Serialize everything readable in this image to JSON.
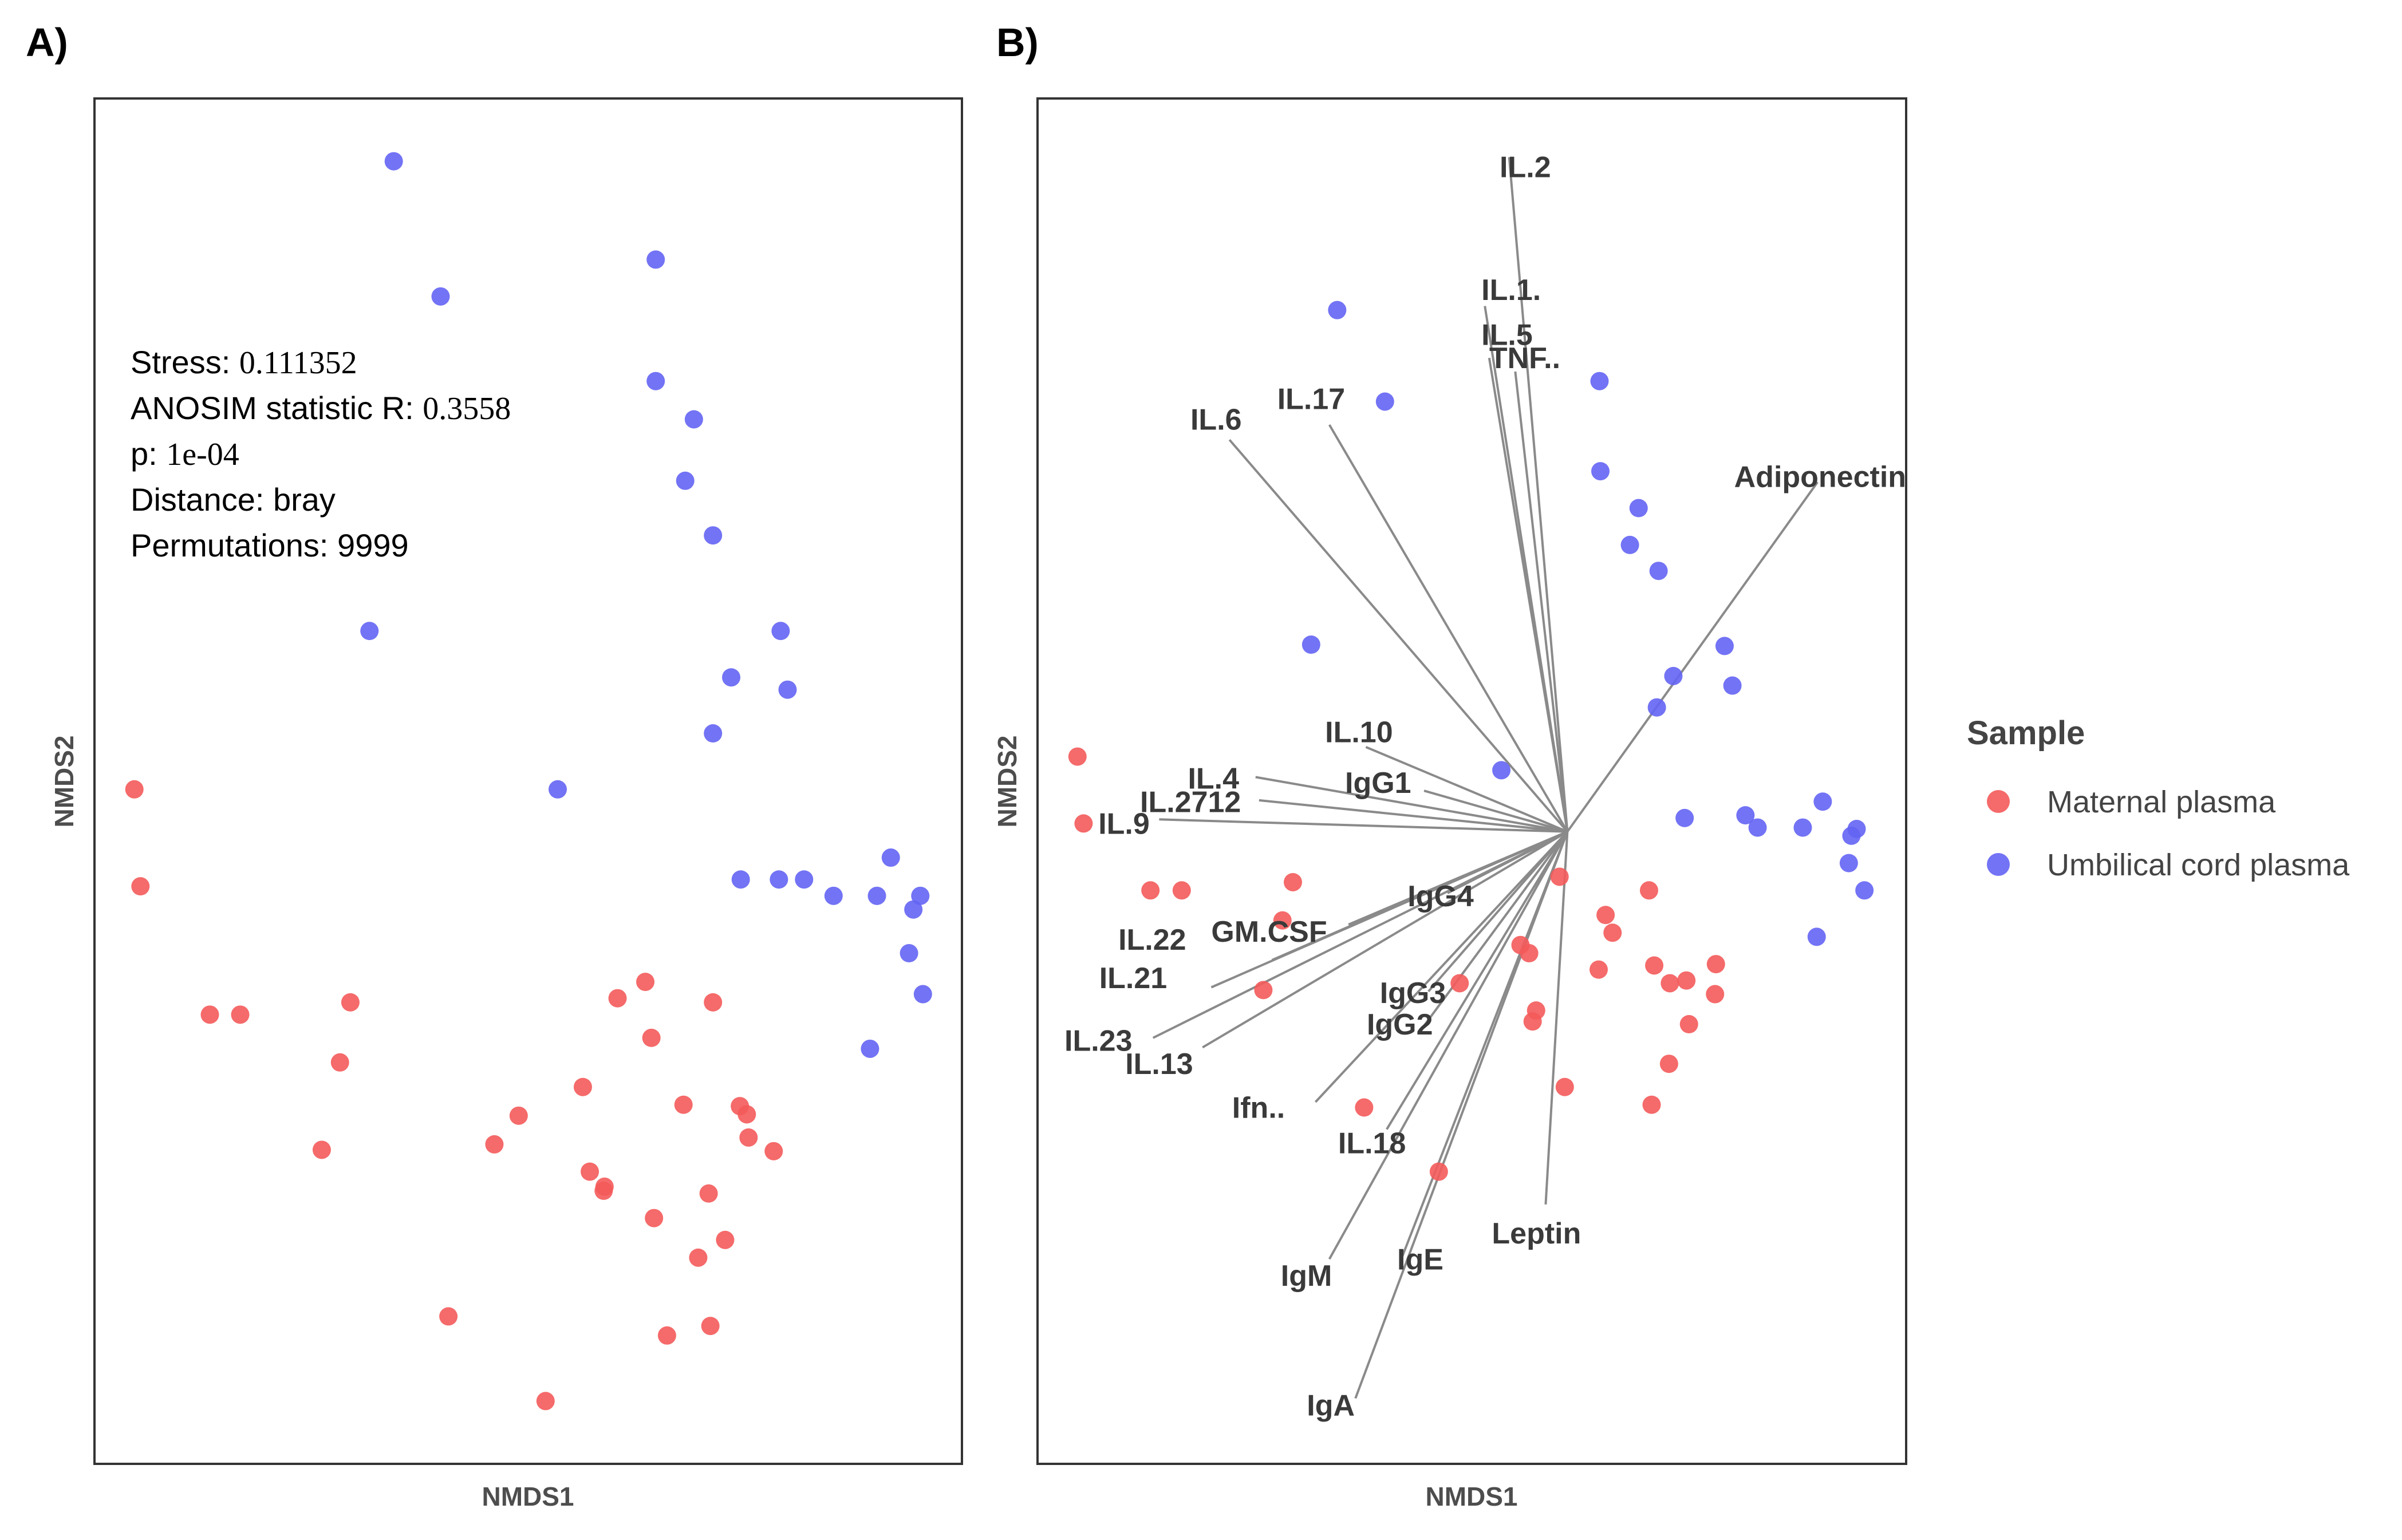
{
  "chart_data": [
    {
      "type": "scatter",
      "panel_label": "A)",
      "xlabel": "NMDS1",
      "ylabel": "NMDS2",
      "xlim": [
        0,
        100
      ],
      "ylim": [
        0,
        100
      ],
      "stats": [
        {
          "key": "Stress: ",
          "value": "0.111352"
        },
        {
          "key": "ANOSIM statistic R: ",
          "value": "0.3558"
        },
        {
          "key": "p: ",
          "value": "1e-04"
        },
        {
          "key": "Distance: bray",
          "value": ""
        },
        {
          "key": "Permutations: 9999",
          "value": ""
        }
      ],
      "series": [
        {
          "name": "Maternal plasma",
          "color": "#f45a5a",
          "points": [
            [
              4.6,
              49.4
            ],
            [
              5.3,
              42.3
            ],
            [
              13.3,
              32.9
            ],
            [
              16.8,
              32.9
            ],
            [
              29.5,
              33.8
            ],
            [
              28.3,
              29.4
            ],
            [
              26.2,
              23.0
            ],
            [
              46.1,
              23.4
            ],
            [
              40.8,
              10.8
            ],
            [
              48.9,
              25.5
            ],
            [
              56.3,
              27.6
            ],
            [
              57.1,
              21.4
            ],
            [
              58.7,
              20.0
            ],
            [
              63.5,
              35.3
            ],
            [
              64.5,
              18.0
            ],
            [
              66.0,
              9.4
            ],
            [
              69.6,
              15.1
            ],
            [
              64.2,
              31.2
            ],
            [
              67.9,
              26.3
            ],
            [
              71.3,
              33.8
            ],
            [
              70.8,
              19.8
            ],
            [
              75.2,
              25.6
            ],
            [
              75.4,
              23.9
            ],
            [
              78.3,
              22.9
            ],
            [
              72.7,
              16.4
            ],
            [
              74.4,
              26.2
            ],
            [
              60.3,
              34.1
            ],
            [
              58.8,
              20.3
            ],
            [
              71.0,
              10.1
            ],
            [
              52.0,
              4.6
            ]
          ]
        },
        {
          "name": "Umbilical cord plasma",
          "color": "#6464f4",
          "points": [
            [
              34.5,
              95.4
            ],
            [
              39.9,
              85.5
            ],
            [
              64.7,
              88.2
            ],
            [
              64.7,
              79.3
            ],
            [
              69.1,
              76.5
            ],
            [
              68.1,
              72.0
            ],
            [
              71.3,
              68.0
            ],
            [
              31.7,
              61.0
            ],
            [
              79.1,
              61.0
            ],
            [
              73.4,
              57.6
            ],
            [
              79.9,
              56.7
            ],
            [
              71.3,
              53.5
            ],
            [
              53.4,
              49.4
            ],
            [
              74.5,
              42.8
            ],
            [
              81.8,
              42.8
            ],
            [
              85.2,
              41.6
            ],
            [
              90.2,
              41.6
            ],
            [
              95.2,
              41.6
            ],
            [
              91.8,
              44.4
            ],
            [
              94.4,
              40.6
            ],
            [
              93.9,
              37.4
            ],
            [
              95.5,
              34.4
            ],
            [
              89.4,
              30.4
            ],
            [
              78.9,
              42.8
            ]
          ]
        }
      ]
    },
    {
      "type": "biplot",
      "panel_label": "B)",
      "xlabel": "NMDS1",
      "ylabel": "NMDS2",
      "xlim": [
        0,
        100
      ],
      "ylim": [
        0,
        100
      ],
      "vector_origin": [
        61,
        46.3
      ],
      "vectors": [
        {
          "label": "IL.2",
          "tip": [
            54.3,
            95.7
          ],
          "label_at": [
            53.2,
            95.0
          ]
        },
        {
          "label": "IL.1.",
          "tip": [
            51.5,
            84.8
          ],
          "label_at": [
            51.1,
            86.0
          ]
        },
        {
          "label": "IL.5",
          "tip": [
            52.0,
            81.0
          ],
          "label_at": [
            51.1,
            82.7
          ]
        },
        {
          "label": "TNF..",
          "tip": [
            55.0,
            80.0
          ],
          "label_at": [
            52.0,
            81.0
          ]
        },
        {
          "label": "IL.17",
          "tip": [
            33.6,
            76.1
          ],
          "label_at": [
            27.6,
            78.0
          ]
        },
        {
          "label": "IL.6",
          "tip": [
            22.1,
            75.0
          ],
          "label_at": [
            17.6,
            76.5
          ]
        },
        {
          "label": "Adiponectin",
          "tip": [
            89.8,
            71.9
          ],
          "label_at": [
            80.2,
            72.3
          ]
        },
        {
          "label": "IL.10",
          "tip": [
            37.8,
            52.5
          ],
          "label_at": [
            33.1,
            53.6
          ]
        },
        {
          "label": "IgG1",
          "tip": [
            44.5,
            49.3
          ],
          "label_at": [
            35.4,
            49.9
          ]
        },
        {
          "label": "IL.4",
          "tip": [
            25.1,
            50.3
          ],
          "label_at": [
            17.3,
            50.2
          ]
        },
        {
          "label": "IL.2712",
          "tip": [
            25.5,
            48.6
          ],
          "label_at": [
            11.8,
            48.5
          ]
        },
        {
          "label": "IL.9",
          "tip": [
            14.0,
            47.2
          ],
          "label_at": [
            7.0,
            46.9
          ]
        },
        {
          "label": "IgG4",
          "tip": [
            47.2,
            41.8
          ],
          "label_at": [
            42.6,
            41.6
          ]
        },
        {
          "label": "GM.CSF",
          "tip": [
            35.8,
            39.5
          ],
          "label_at": [
            20.0,
            39.0
          ]
        },
        {
          "label": "IL.22",
          "tip": [
            27.0,
            36.9
          ],
          "label_at": [
            9.3,
            38.4
          ]
        },
        {
          "label": "IL.21",
          "tip": [
            20.0,
            34.9
          ],
          "label_at": [
            7.1,
            35.6
          ]
        },
        {
          "label": "IgG3",
          "tip": [
            45.0,
            34.6
          ],
          "label_at": [
            39.4,
            34.5
          ]
        },
        {
          "label": "IgG2",
          "tip": [
            44.4,
            32.0
          ],
          "label_at": [
            37.9,
            32.2
          ]
        },
        {
          "label": "IL.23",
          "tip": [
            13.3,
            31.2
          ],
          "label_at": [
            3.1,
            31.0
          ]
        },
        {
          "label": "IL.13",
          "tip": [
            19.0,
            30.5
          ],
          "label_at": [
            10.1,
            29.3
          ]
        },
        {
          "label": "Ifn..",
          "tip": [
            32.0,
            26.5
          ],
          "label_at": [
            22.4,
            26.1
          ]
        },
        {
          "label": "IL.18",
          "tip": [
            40.2,
            24.5
          ],
          "label_at": [
            34.6,
            23.5
          ]
        },
        {
          "label": "Leptin",
          "tip": [
            58.5,
            19.0
          ],
          "label_at": [
            52.3,
            16.9
          ]
        },
        {
          "label": "IgE",
          "tip": [
            42.0,
            15.2
          ],
          "label_at": [
            41.4,
            15.0
          ]
        },
        {
          "label": "IgM",
          "tip": [
            33.6,
            15.0
          ],
          "label_at": [
            28.0,
            13.8
          ]
        },
        {
          "label": "IgA",
          "tip": [
            36.6,
            4.8
          ],
          "label_at": [
            31.0,
            4.3
          ]
        }
      ],
      "series": [
        {
          "name": "Maternal plasma",
          "color": "#f45a5a",
          "points": [
            [
              4.6,
              51.8
            ],
            [
              5.3,
              46.9
            ],
            [
              13.0,
              42.0
            ],
            [
              16.6,
              42.0
            ],
            [
              29.4,
              42.6
            ],
            [
              28.2,
              39.8
            ],
            [
              26.0,
              34.7
            ],
            [
              37.6,
              26.1
            ],
            [
              48.6,
              35.2
            ],
            [
              46.2,
              21.4
            ],
            [
              55.6,
              38.0
            ],
            [
              57.4,
              33.2
            ],
            [
              56.6,
              37.4
            ],
            [
              60.1,
              43.0
            ],
            [
              57.0,
              32.4
            ],
            [
              60.7,
              27.6
            ],
            [
              64.6,
              36.2
            ],
            [
              65.4,
              40.2
            ],
            [
              66.2,
              38.9
            ],
            [
              70.4,
              42.0
            ],
            [
              71.0,
              36.5
            ],
            [
              74.7,
              35.4
            ],
            [
              75.0,
              32.2
            ],
            [
              78.0,
              34.4
            ],
            [
              78.1,
              36.6
            ],
            [
              72.8,
              35.2
            ],
            [
              70.7,
              26.3
            ],
            [
              72.7,
              29.3
            ]
          ]
        },
        {
          "name": "Umbilical cord plasma",
          "color": "#6464f4",
          "points": [
            [
              34.5,
              84.5
            ],
            [
              40.0,
              77.8
            ],
            [
              64.7,
              79.3
            ],
            [
              64.8,
              72.7
            ],
            [
              69.2,
              70.0
            ],
            [
              68.2,
              67.3
            ],
            [
              71.5,
              65.4
            ],
            [
              31.5,
              60.0
            ],
            [
              79.1,
              59.9
            ],
            [
              73.2,
              57.7
            ],
            [
              80.0,
              57.0
            ],
            [
              71.3,
              55.4
            ],
            [
              53.4,
              50.8
            ],
            [
              74.5,
              47.3
            ],
            [
              81.5,
              47.5
            ],
            [
              82.9,
              46.6
            ],
            [
              88.1,
              46.6
            ],
            [
              90.4,
              48.5
            ],
            [
              94.3,
              46.5
            ],
            [
              93.7,
              46.0
            ],
            [
              93.4,
              44.0
            ],
            [
              95.2,
              42.0
            ],
            [
              89.7,
              38.6
            ]
          ]
        }
      ]
    }
  ],
  "legend": {
    "title": "Sample",
    "items": [
      {
        "label": "Maternal plasma",
        "color": "#f45a5a"
      },
      {
        "label": "Umbilical cord plasma",
        "color": "#6464f4"
      }
    ]
  }
}
